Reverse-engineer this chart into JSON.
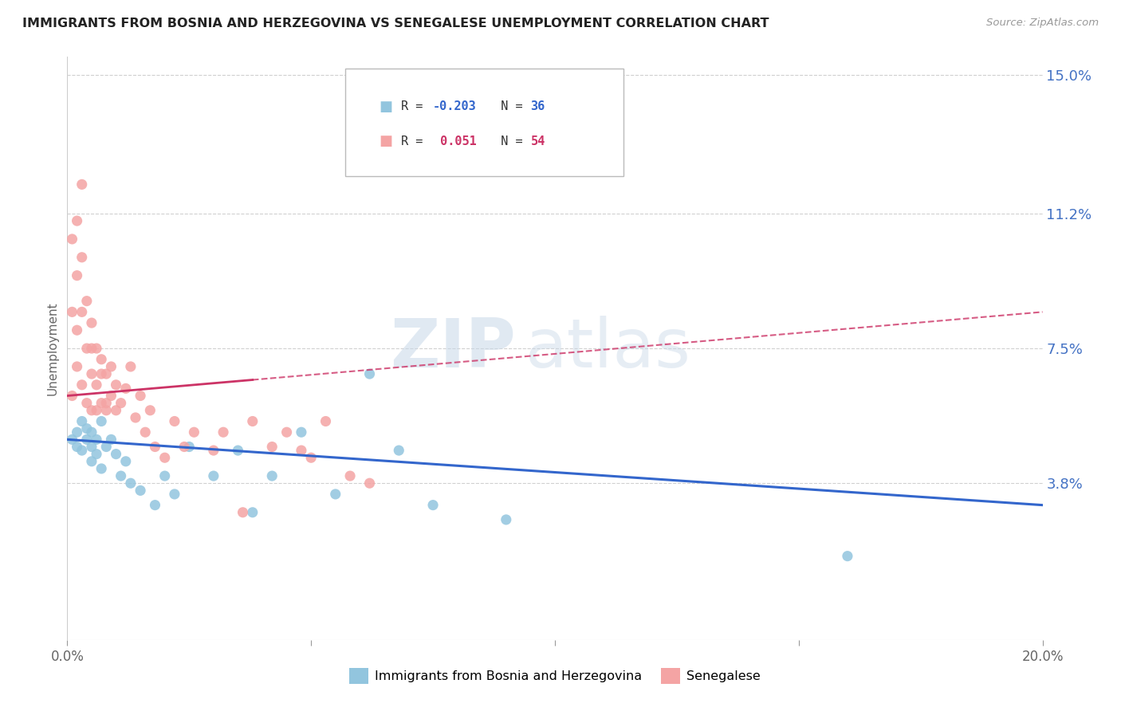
{
  "title": "IMMIGRANTS FROM BOSNIA AND HERZEGOVINA VS SENEGALESE UNEMPLOYMENT CORRELATION CHART",
  "source": "Source: ZipAtlas.com",
  "ylabel": "Unemployment",
  "xlim": [
    0.0,
    0.2
  ],
  "ylim": [
    -0.005,
    0.155
  ],
  "xticks": [
    0.0,
    0.05,
    0.1,
    0.15,
    0.2
  ],
  "xtick_labels": [
    "0.0%",
    "",
    "",
    "",
    "20.0%"
  ],
  "yticks_right": [
    0.15,
    0.112,
    0.075,
    0.038
  ],
  "ytick_right_labels": [
    "15.0%",
    "11.2%",
    "7.5%",
    "3.8%"
  ],
  "watermark_zip": "ZIP",
  "watermark_atlas": "atlas",
  "blue_color": "#92c5de",
  "pink_color": "#f4a4a4",
  "blue_line_color": "#3366cc",
  "pink_line_color": "#cc3366",
  "blue_scatter_x": [
    0.001,
    0.002,
    0.002,
    0.003,
    0.003,
    0.004,
    0.004,
    0.005,
    0.005,
    0.005,
    0.006,
    0.006,
    0.007,
    0.007,
    0.008,
    0.009,
    0.01,
    0.011,
    0.012,
    0.013,
    0.015,
    0.018,
    0.02,
    0.022,
    0.025,
    0.03,
    0.035,
    0.038,
    0.042,
    0.048,
    0.055,
    0.062,
    0.068,
    0.075,
    0.09,
    0.16
  ],
  "blue_scatter_y": [
    0.05,
    0.052,
    0.048,
    0.055,
    0.047,
    0.05,
    0.053,
    0.048,
    0.052,
    0.044,
    0.05,
    0.046,
    0.055,
    0.042,
    0.048,
    0.05,
    0.046,
    0.04,
    0.044,
    0.038,
    0.036,
    0.032,
    0.04,
    0.035,
    0.048,
    0.04,
    0.047,
    0.03,
    0.04,
    0.052,
    0.035,
    0.068,
    0.047,
    0.032,
    0.028,
    0.018
  ],
  "pink_scatter_x": [
    0.001,
    0.001,
    0.001,
    0.002,
    0.002,
    0.002,
    0.002,
    0.003,
    0.003,
    0.003,
    0.003,
    0.004,
    0.004,
    0.004,
    0.005,
    0.005,
    0.005,
    0.005,
    0.006,
    0.006,
    0.006,
    0.007,
    0.007,
    0.007,
    0.008,
    0.008,
    0.008,
    0.009,
    0.009,
    0.01,
    0.01,
    0.011,
    0.012,
    0.013,
    0.014,
    0.015,
    0.016,
    0.017,
    0.018,
    0.02,
    0.022,
    0.024,
    0.026,
    0.03,
    0.032,
    0.036,
    0.038,
    0.042,
    0.045,
    0.048,
    0.05,
    0.053,
    0.058,
    0.062
  ],
  "pink_scatter_y": [
    0.105,
    0.085,
    0.062,
    0.11,
    0.095,
    0.08,
    0.07,
    0.12,
    0.1,
    0.085,
    0.065,
    0.075,
    0.088,
    0.06,
    0.075,
    0.068,
    0.058,
    0.082,
    0.065,
    0.075,
    0.058,
    0.068,
    0.06,
    0.072,
    0.058,
    0.068,
    0.06,
    0.062,
    0.07,
    0.058,
    0.065,
    0.06,
    0.064,
    0.07,
    0.056,
    0.062,
    0.052,
    0.058,
    0.048,
    0.045,
    0.055,
    0.048,
    0.052,
    0.047,
    0.052,
    0.03,
    0.055,
    0.048,
    0.052,
    0.047,
    0.045,
    0.055,
    0.04,
    0.038
  ],
  "background_color": "#ffffff",
  "grid_color": "#d0d0d0"
}
